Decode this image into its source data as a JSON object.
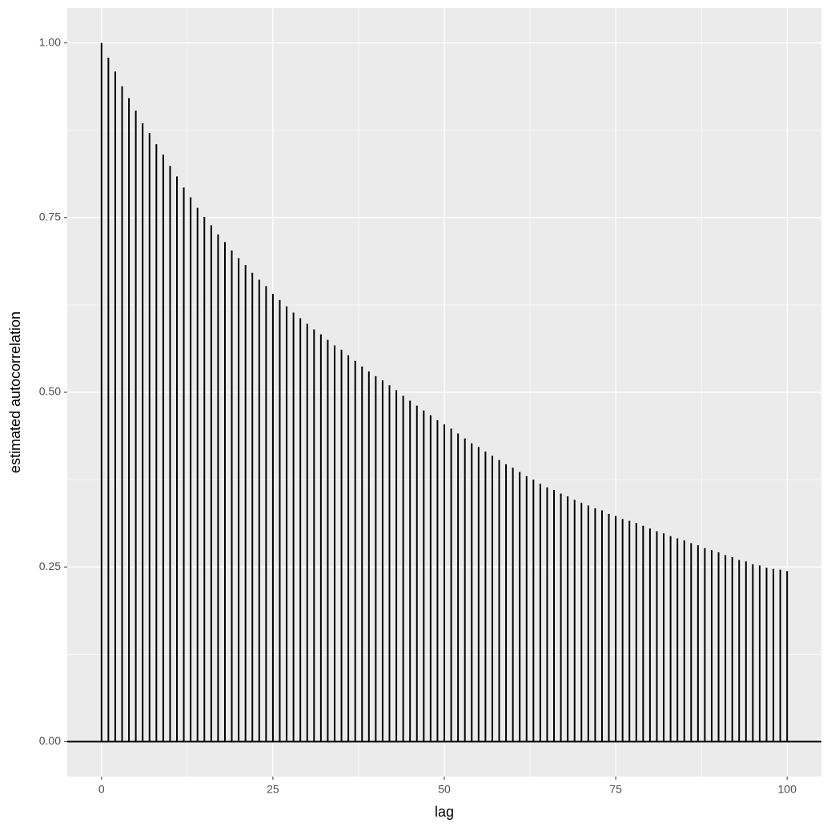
{
  "chart_data": {
    "type": "stem",
    "x_label": "lag",
    "y_label": "estimated autocorrelation",
    "x": [
      0,
      1,
      2,
      3,
      4,
      5,
      6,
      7,
      8,
      9,
      10,
      11,
      12,
      13,
      14,
      15,
      16,
      17,
      18,
      19,
      20,
      21,
      22,
      23,
      24,
      25,
      26,
      27,
      28,
      29,
      30,
      31,
      32,
      33,
      34,
      35,
      36,
      37,
      38,
      39,
      40,
      41,
      42,
      43,
      44,
      45,
      46,
      47,
      48,
      49,
      50,
      51,
      52,
      53,
      54,
      55,
      56,
      57,
      58,
      59,
      60,
      61,
      62,
      63,
      64,
      65,
      66,
      67,
      68,
      69,
      70,
      71,
      72,
      73,
      74,
      75,
      76,
      77,
      78,
      79,
      80,
      81,
      82,
      83,
      84,
      85,
      86,
      87,
      88,
      89,
      90,
      91,
      92,
      93,
      94,
      95,
      96,
      97,
      98,
      99,
      100
    ],
    "series": [
      {
        "color": "#000000",
        "values": [
          1.0,
          0.979,
          0.959,
          0.938,
          0.921,
          0.903,
          0.885,
          0.871,
          0.855,
          0.84,
          0.824,
          0.809,
          0.793,
          0.779,
          0.764,
          0.751,
          0.739,
          0.726,
          0.715,
          0.703,
          0.692,
          0.682,
          0.671,
          0.661,
          0.652,
          0.641,
          0.632,
          0.623,
          0.614,
          0.606,
          0.598,
          0.59,
          0.583,
          0.575,
          0.567,
          0.561,
          0.553,
          0.545,
          0.537,
          0.53,
          0.523,
          0.517,
          0.51,
          0.503,
          0.495,
          0.488,
          0.481,
          0.474,
          0.467,
          0.46,
          0.454,
          0.448,
          0.441,
          0.434,
          0.427,
          0.422,
          0.415,
          0.409,
          0.403,
          0.397,
          0.392,
          0.386,
          0.38,
          0.375,
          0.369,
          0.364,
          0.36,
          0.355,
          0.351,
          0.346,
          0.342,
          0.338,
          0.334,
          0.331,
          0.326,
          0.323,
          0.319,
          0.316,
          0.313,
          0.309,
          0.305,
          0.301,
          0.298,
          0.294,
          0.291,
          0.288,
          0.284,
          0.281,
          0.277,
          0.274,
          0.271,
          0.267,
          0.264,
          0.26,
          0.258,
          0.254,
          0.252,
          0.249,
          0.247,
          0.246,
          0.244
        ]
      }
    ],
    "hline": 0,
    "xlim": [
      -5,
      105
    ],
    "ylim": [
      -0.05,
      1.05
    ],
    "xticks": [
      0,
      25,
      50,
      75,
      100
    ],
    "yticks": [
      {
        "value": 0,
        "label": "0.00"
      },
      {
        "value": 0.25,
        "label": "0.25"
      },
      {
        "value": 0.5,
        "label": "0.50"
      },
      {
        "value": 0.75,
        "label": "0.75"
      },
      {
        "value": 1,
        "label": "1.00"
      }
    ],
    "grid": true,
    "panel_color": "#ebebeb"
  }
}
